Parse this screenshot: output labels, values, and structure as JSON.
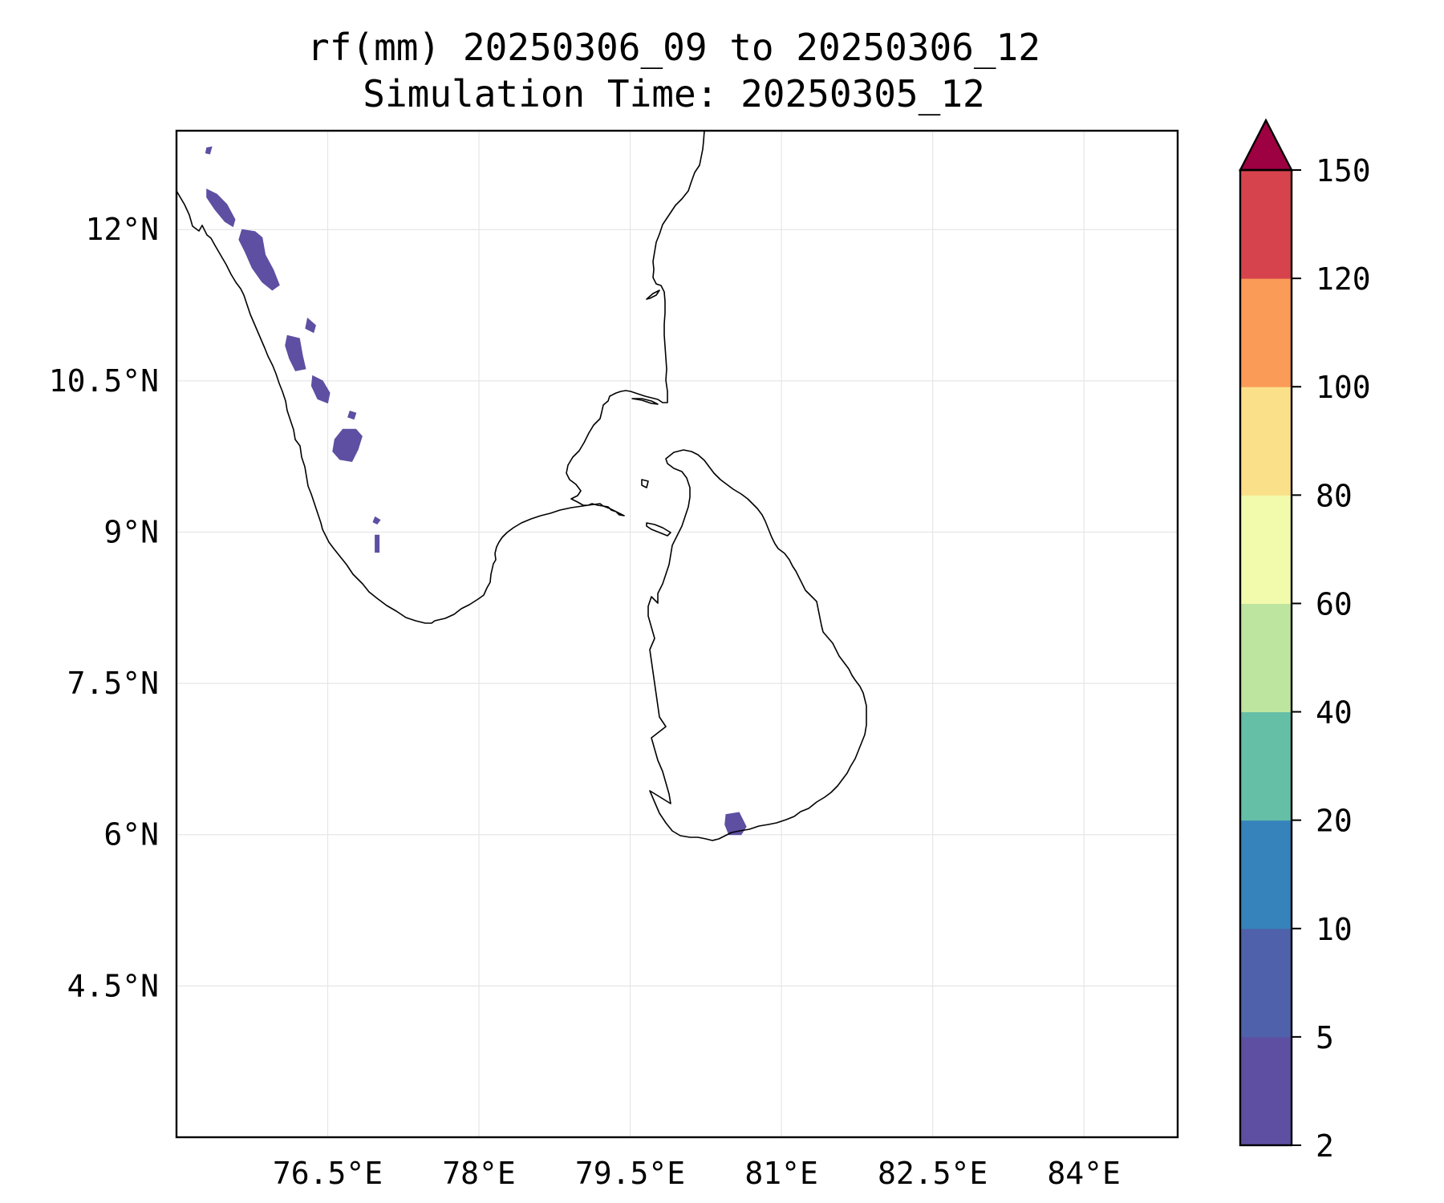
{
  "title": {
    "line1": "rf(mm) 20250306_09 to 20250306_12",
    "line2": "Simulation Time: 20250305_12"
  },
  "map": {
    "lon_min": 75.0,
    "lon_max": 84.93,
    "lat_min": 3.0,
    "lat_max": 12.98,
    "xticks": [
      {
        "value": 76.5,
        "label": "76.5°E"
      },
      {
        "value": 78.0,
        "label": "78°E"
      },
      {
        "value": 79.5,
        "label": "79.5°E"
      },
      {
        "value": 81.0,
        "label": "81°E"
      },
      {
        "value": 82.5,
        "label": "82.5°E"
      },
      {
        "value": 84.0,
        "label": "84°E"
      }
    ],
    "yticks": [
      {
        "value": 12.0,
        "label": "12°N"
      },
      {
        "value": 10.5,
        "label": "10.5°N"
      },
      {
        "value": 9.0,
        "label": "9°N"
      },
      {
        "value": 7.5,
        "label": "7.5°N"
      },
      {
        "value": 6.0,
        "label": "6°N"
      },
      {
        "value": 4.5,
        "label": "4.5°N"
      }
    ],
    "grid": true,
    "coastline_color": "#000000",
    "grid_color": "#e6e6e6"
  },
  "rain_patches": [
    {
      "name": "karnataka-coast-north",
      "bin": "2-5",
      "points": [
        [
          75.3,
          12.81
        ],
        [
          75.35,
          12.82
        ],
        [
          75.33,
          12.75
        ],
        [
          75.29,
          12.76
        ]
      ]
    },
    {
      "name": "karnataka-coast-strip-a",
      "bin": "2-5",
      "points": [
        [
          75.3,
          12.4
        ],
        [
          75.4,
          12.35
        ],
        [
          75.5,
          12.25
        ],
        [
          75.58,
          12.1
        ],
        [
          75.56,
          12.03
        ],
        [
          75.48,
          12.08
        ],
        [
          75.38,
          12.2
        ],
        [
          75.3,
          12.32
        ]
      ]
    },
    {
      "name": "kerala-north-strip",
      "bin": "2-5",
      "points": [
        [
          75.65,
          12.0
        ],
        [
          75.78,
          11.98
        ],
        [
          75.85,
          11.92
        ],
        [
          75.88,
          11.75
        ],
        [
          75.96,
          11.6
        ],
        [
          76.02,
          11.45
        ],
        [
          75.95,
          11.4
        ],
        [
          75.85,
          11.48
        ],
        [
          75.75,
          11.62
        ],
        [
          75.68,
          11.78
        ],
        [
          75.62,
          11.9
        ]
      ]
    },
    {
      "name": "wayanad-patch",
      "bin": "2-5",
      "points": [
        [
          76.3,
          11.12
        ],
        [
          76.38,
          11.05
        ],
        [
          76.36,
          10.98
        ],
        [
          76.28,
          11.02
        ]
      ]
    },
    {
      "name": "palakkad-patch",
      "bin": "2-5",
      "points": [
        [
          76.1,
          10.95
        ],
        [
          76.22,
          10.92
        ],
        [
          76.25,
          10.75
        ],
        [
          76.28,
          10.62
        ],
        [
          76.18,
          10.6
        ],
        [
          76.12,
          10.72
        ],
        [
          76.08,
          10.85
        ]
      ]
    },
    {
      "name": "thrissur-patch",
      "bin": "2-5",
      "points": [
        [
          76.35,
          10.55
        ],
        [
          76.45,
          10.5
        ],
        [
          76.52,
          10.38
        ],
        [
          76.5,
          10.28
        ],
        [
          76.4,
          10.32
        ],
        [
          76.34,
          10.45
        ]
      ]
    },
    {
      "name": "idukki-patch",
      "bin": "2-5",
      "points": [
        [
          76.65,
          10.02
        ],
        [
          76.78,
          10.02
        ],
        [
          76.84,
          9.95
        ],
        [
          76.8,
          9.82
        ],
        [
          76.74,
          9.7
        ],
        [
          76.62,
          9.72
        ],
        [
          76.55,
          9.8
        ],
        [
          76.57,
          9.92
        ]
      ]
    },
    {
      "name": "idukki-spot",
      "bin": "2-5",
      "points": [
        [
          76.72,
          10.2
        ],
        [
          76.78,
          10.18
        ],
        [
          76.76,
          10.12
        ],
        [
          76.7,
          10.14
        ]
      ]
    },
    {
      "name": "south-kerala-spot",
      "bin": "2-5",
      "points": [
        [
          76.97,
          9.15
        ],
        [
          77.02,
          9.12
        ],
        [
          76.99,
          9.08
        ],
        [
          76.95,
          9.1
        ]
      ]
    },
    {
      "name": "south-kerala-streak",
      "bin": "2-5",
      "points": [
        [
          76.97,
          8.97
        ],
        [
          77.01,
          8.97
        ],
        [
          77.01,
          8.8
        ],
        [
          76.97,
          8.8
        ]
      ]
    },
    {
      "name": "sri-lanka-south",
      "bin": "2-5",
      "points": [
        [
          80.45,
          6.2
        ],
        [
          80.58,
          6.22
        ],
        [
          80.65,
          6.08
        ],
        [
          80.6,
          6.0
        ],
        [
          80.48,
          6.0
        ],
        [
          80.44,
          6.1
        ]
      ]
    }
  ],
  "colorbar": {
    "boundaries": [
      2,
      5,
      10,
      20,
      40,
      60,
      80,
      100,
      120,
      150
    ],
    "labels": [
      "2",
      "5",
      "10",
      "20",
      "40",
      "60",
      "80",
      "100",
      "120",
      "150"
    ],
    "colors": [
      "#5e4fa2",
      "#4f61aa",
      "#3682ba",
      "#65bea6",
      "#bde5a0",
      "#f2faac",
      "#fbe08a",
      "#fa9b58",
      "#d7434d"
    ],
    "extend_color": "#9e0142",
    "extend": "max"
  }
}
